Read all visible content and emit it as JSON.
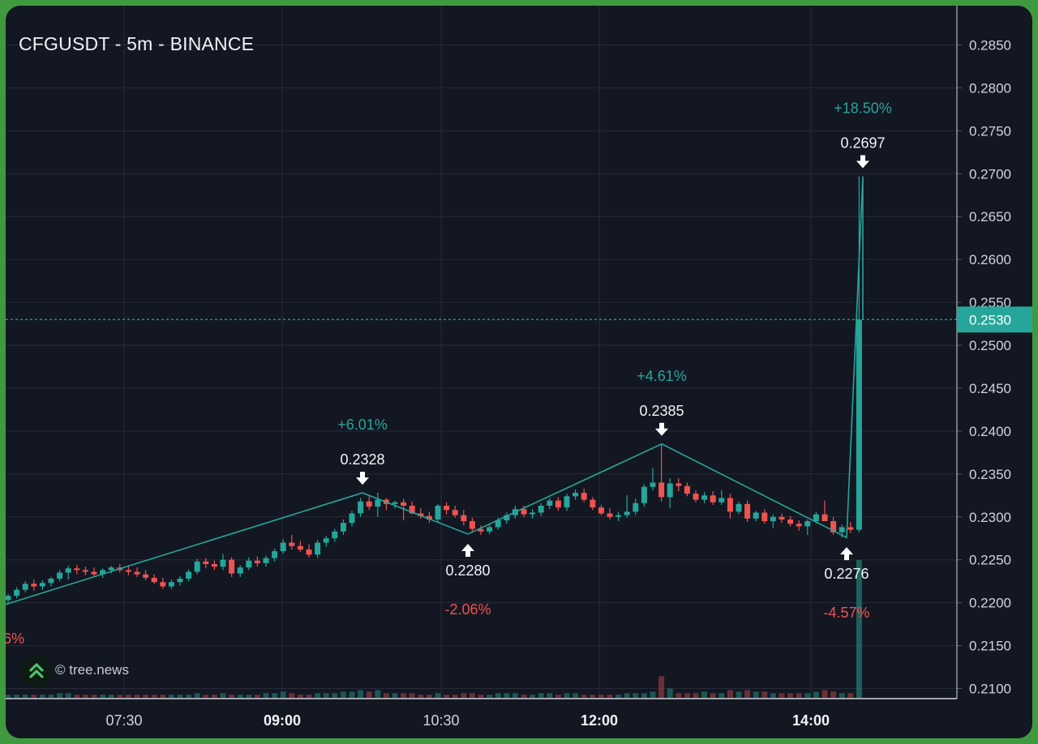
{
  "header": {
    "title": "CFGUSDT - 5m - BINANCE"
  },
  "watermark": {
    "text": "© tree.news",
    "logo_icon": "double-chevron-up-icon"
  },
  "colors": {
    "background": "#131722",
    "frame": "#3f9a3f",
    "grid": "#262b38",
    "up": "#26a69a",
    "down": "#ef5350",
    "label": "#f0f3fa",
    "axis_text": "#d1d4dc"
  },
  "chart_data": {
    "type": "candlestick",
    "symbol": "CFGUSDT",
    "interval": "5m",
    "exchange": "BINANCE",
    "x_ticks": [
      {
        "label": "07:30",
        "bold": false
      },
      {
        "label": "09:00",
        "bold": true
      },
      {
        "label": "10:30",
        "bold": false
      },
      {
        "label": "12:00",
        "bold": true
      },
      {
        "label": "14:00",
        "bold": true
      }
    ],
    "y_ticks": [
      "0.2100",
      "0.2150",
      "0.2200",
      "0.2250",
      "0.2300",
      "0.2350",
      "0.2400",
      "0.2450",
      "0.2500",
      "0.2550",
      "0.2600",
      "0.2650",
      "0.2700",
      "0.2750",
      "0.2800",
      "0.2850"
    ],
    "ylim": [
      0.2095,
      0.2885
    ],
    "current_price": {
      "label": "0.2530",
      "value": 0.253
    },
    "swing_line": [
      0.2198,
      0.2328,
      0.228,
      0.2385,
      0.2276,
      0.2697,
      0.253
    ],
    "pivots": [
      {
        "kind": "high",
        "price": "0.2328",
        "change": "+6.01%"
      },
      {
        "kind": "low",
        "price": "0.2280",
        "change": "-2.06%"
      },
      {
        "kind": "high",
        "price": "0.2385",
        "change": "+4.61%"
      },
      {
        "kind": "low",
        "price": "0.2276",
        "change": "-4.57%"
      },
      {
        "kind": "high",
        "price": "0.2697",
        "change": "+18.50%"
      }
    ],
    "partial_label": "6%",
    "candles": [
      [
        0.2203,
        0.221,
        0.2199,
        0.2208
      ],
      [
        0.2208,
        0.2218,
        0.2205,
        0.2215
      ],
      [
        0.2215,
        0.2225,
        0.2212,
        0.2222
      ],
      [
        0.2222,
        0.2227,
        0.2214,
        0.2219
      ],
      [
        0.2219,
        0.2226,
        0.2215,
        0.2223
      ],
      [
        0.2223,
        0.223,
        0.2219,
        0.2228
      ],
      [
        0.2228,
        0.2238,
        0.2225,
        0.2235
      ],
      [
        0.2235,
        0.2243,
        0.2227,
        0.224
      ],
      [
        0.224,
        0.2244,
        0.2233,
        0.2238
      ],
      [
        0.2238,
        0.2242,
        0.2232,
        0.2236
      ],
      [
        0.2236,
        0.2241,
        0.223,
        0.2233
      ],
      [
        0.2233,
        0.224,
        0.2229,
        0.2238
      ],
      [
        0.2238,
        0.2243,
        0.2234,
        0.2241
      ],
      [
        0.2241,
        0.2245,
        0.2235,
        0.2238
      ],
      [
        0.2238,
        0.2243,
        0.2232,
        0.2236
      ],
      [
        0.2236,
        0.2241,
        0.223,
        0.2233
      ],
      [
        0.2233,
        0.2238,
        0.2226,
        0.2229
      ],
      [
        0.2229,
        0.2233,
        0.2222,
        0.2224
      ],
      [
        0.2224,
        0.2229,
        0.2216,
        0.2219
      ],
      [
        0.2219,
        0.2227,
        0.2216,
        0.2224
      ],
      [
        0.2224,
        0.2231,
        0.222,
        0.2228
      ],
      [
        0.2228,
        0.2239,
        0.2225,
        0.2236
      ],
      [
        0.2236,
        0.2251,
        0.2233,
        0.2248
      ],
      [
        0.2248,
        0.2252,
        0.224,
        0.2245
      ],
      [
        0.2245,
        0.2249,
        0.2238,
        0.2242
      ],
      [
        0.2242,
        0.2257,
        0.2238,
        0.225
      ],
      [
        0.225,
        0.2253,
        0.223,
        0.2234
      ],
      [
        0.2234,
        0.2244,
        0.223,
        0.2241
      ],
      [
        0.2241,
        0.2253,
        0.2238,
        0.2249
      ],
      [
        0.2249,
        0.2254,
        0.2242,
        0.2246
      ],
      [
        0.2246,
        0.2255,
        0.2242,
        0.2252
      ],
      [
        0.2252,
        0.2263,
        0.2248,
        0.226
      ],
      [
        0.226,
        0.2274,
        0.2257,
        0.227
      ],
      [
        0.227,
        0.2279,
        0.2262,
        0.2266
      ],
      [
        0.2266,
        0.2272,
        0.2259,
        0.2262
      ],
      [
        0.2262,
        0.2268,
        0.2253,
        0.2256
      ],
      [
        0.2256,
        0.2273,
        0.2252,
        0.227
      ],
      [
        0.227,
        0.2278,
        0.2265,
        0.2275
      ],
      [
        0.2275,
        0.2286,
        0.2271,
        0.2283
      ],
      [
        0.2283,
        0.2297,
        0.2279,
        0.2293
      ],
      [
        0.2293,
        0.2307,
        0.2289,
        0.2304
      ],
      [
        0.2304,
        0.2322,
        0.23,
        0.2318
      ],
      [
        0.2318,
        0.2325,
        0.2308,
        0.2312
      ],
      [
        0.2312,
        0.2328,
        0.23,
        0.232
      ],
      [
        0.232,
        0.2322,
        0.2308,
        0.2315
      ],
      [
        0.2315,
        0.2319,
        0.231,
        0.2317
      ],
      [
        0.2317,
        0.2321,
        0.2296,
        0.2313
      ],
      [
        0.2313,
        0.2318,
        0.2303,
        0.2304
      ],
      [
        0.2304,
        0.231,
        0.2298,
        0.2301
      ],
      [
        0.2301,
        0.2306,
        0.2293,
        0.2297
      ],
      [
        0.2297,
        0.2315,
        0.2294,
        0.2313
      ],
      [
        0.2313,
        0.2317,
        0.2303,
        0.2308
      ],
      [
        0.2308,
        0.2313,
        0.2299,
        0.2302
      ],
      [
        0.2302,
        0.2308,
        0.229,
        0.2295
      ],
      [
        0.2295,
        0.2299,
        0.2283,
        0.2286
      ],
      [
        0.2286,
        0.229,
        0.2279,
        0.2283
      ],
      [
        0.2283,
        0.2291,
        0.228,
        0.2288
      ],
      [
        0.2288,
        0.2299,
        0.2285,
        0.2296
      ],
      [
        0.2296,
        0.2305,
        0.2292,
        0.2302
      ],
      [
        0.2302,
        0.2313,
        0.2298,
        0.2309
      ],
      [
        0.2309,
        0.2313,
        0.23,
        0.2303
      ],
      [
        0.2303,
        0.2309,
        0.2298,
        0.2305
      ],
      [
        0.2305,
        0.2316,
        0.2301,
        0.2313
      ],
      [
        0.2313,
        0.2322,
        0.2309,
        0.2319
      ],
      [
        0.2319,
        0.2323,
        0.2307,
        0.2311
      ],
      [
        0.2311,
        0.2327,
        0.2307,
        0.2324
      ],
      [
        0.2324,
        0.2332,
        0.232,
        0.2328
      ],
      [
        0.2328,
        0.2333,
        0.2317,
        0.232
      ],
      [
        0.232,
        0.2323,
        0.2308,
        0.2311
      ],
      [
        0.2311,
        0.2314,
        0.2302,
        0.2304
      ],
      [
        0.2304,
        0.231,
        0.2297,
        0.23
      ],
      [
        0.23,
        0.2306,
        0.2295,
        0.2302
      ],
      [
        0.2302,
        0.2325,
        0.2299,
        0.2306
      ],
      [
        0.2306,
        0.2321,
        0.2302,
        0.2316
      ],
      [
        0.2316,
        0.2338,
        0.2312,
        0.2335
      ],
      [
        0.2335,
        0.2357,
        0.2331,
        0.234
      ],
      [
        0.234,
        0.2385,
        0.2318,
        0.2323
      ],
      [
        0.2323,
        0.2345,
        0.231,
        0.2339
      ],
      [
        0.2339,
        0.2345,
        0.233,
        0.2336
      ],
      [
        0.2336,
        0.234,
        0.2324,
        0.2327
      ],
      [
        0.2327,
        0.2331,
        0.2317,
        0.232
      ],
      [
        0.232,
        0.2329,
        0.2316,
        0.2325
      ],
      [
        0.2325,
        0.233,
        0.2314,
        0.2317
      ],
      [
        0.2317,
        0.2331,
        0.2314,
        0.2322
      ],
      [
        0.2322,
        0.2327,
        0.2298,
        0.2306
      ],
      [
        0.2306,
        0.2318,
        0.2303,
        0.2315
      ],
      [
        0.2315,
        0.2319,
        0.2294,
        0.2298
      ],
      [
        0.2298,
        0.2307,
        0.2295,
        0.2305
      ],
      [
        0.2305,
        0.2309,
        0.2292,
        0.2295
      ],
      [
        0.2295,
        0.2303,
        0.2287,
        0.23
      ],
      [
        0.23,
        0.2304,
        0.2293,
        0.2297
      ],
      [
        0.2297,
        0.2301,
        0.2289,
        0.2292
      ],
      [
        0.2292,
        0.2296,
        0.2284,
        0.2289
      ],
      [
        0.2289,
        0.2297,
        0.2279,
        0.2295
      ],
      [
        0.2295,
        0.2306,
        0.2292,
        0.2303
      ],
      [
        0.2303,
        0.2319,
        0.2296,
        0.2295
      ],
      [
        0.2295,
        0.23,
        0.2279,
        0.2282
      ],
      [
        0.2282,
        0.2291,
        0.2276,
        0.2288
      ],
      [
        0.2288,
        0.2294,
        0.2281,
        0.2285
      ],
      [
        0.2285,
        0.2697,
        0.2282,
        0.253
      ]
    ],
    "volume": [
      2,
      2,
      2,
      2,
      2,
      2,
      3,
      3,
      2,
      2,
      2,
      2,
      2,
      2,
      2,
      2,
      2,
      2,
      2,
      2,
      2,
      2,
      3,
      2,
      2,
      3,
      2,
      2,
      2,
      2,
      3,
      3,
      4,
      3,
      2,
      2,
      3,
      3,
      3,
      4,
      4,
      5,
      4,
      5,
      3,
      3,
      3,
      3,
      2,
      2,
      3,
      2,
      2,
      3,
      3,
      2,
      2,
      3,
      3,
      3,
      2,
      2,
      3,
      3,
      2,
      3,
      3,
      2,
      2,
      2,
      2,
      2,
      3,
      3,
      3,
      4,
      14,
      6,
      3,
      3,
      3,
      4,
      3,
      3,
      5,
      4,
      5,
      4,
      4,
      3,
      3,
      3,
      3,
      3,
      4,
      5,
      4,
      3,
      3,
      22
    ]
  }
}
